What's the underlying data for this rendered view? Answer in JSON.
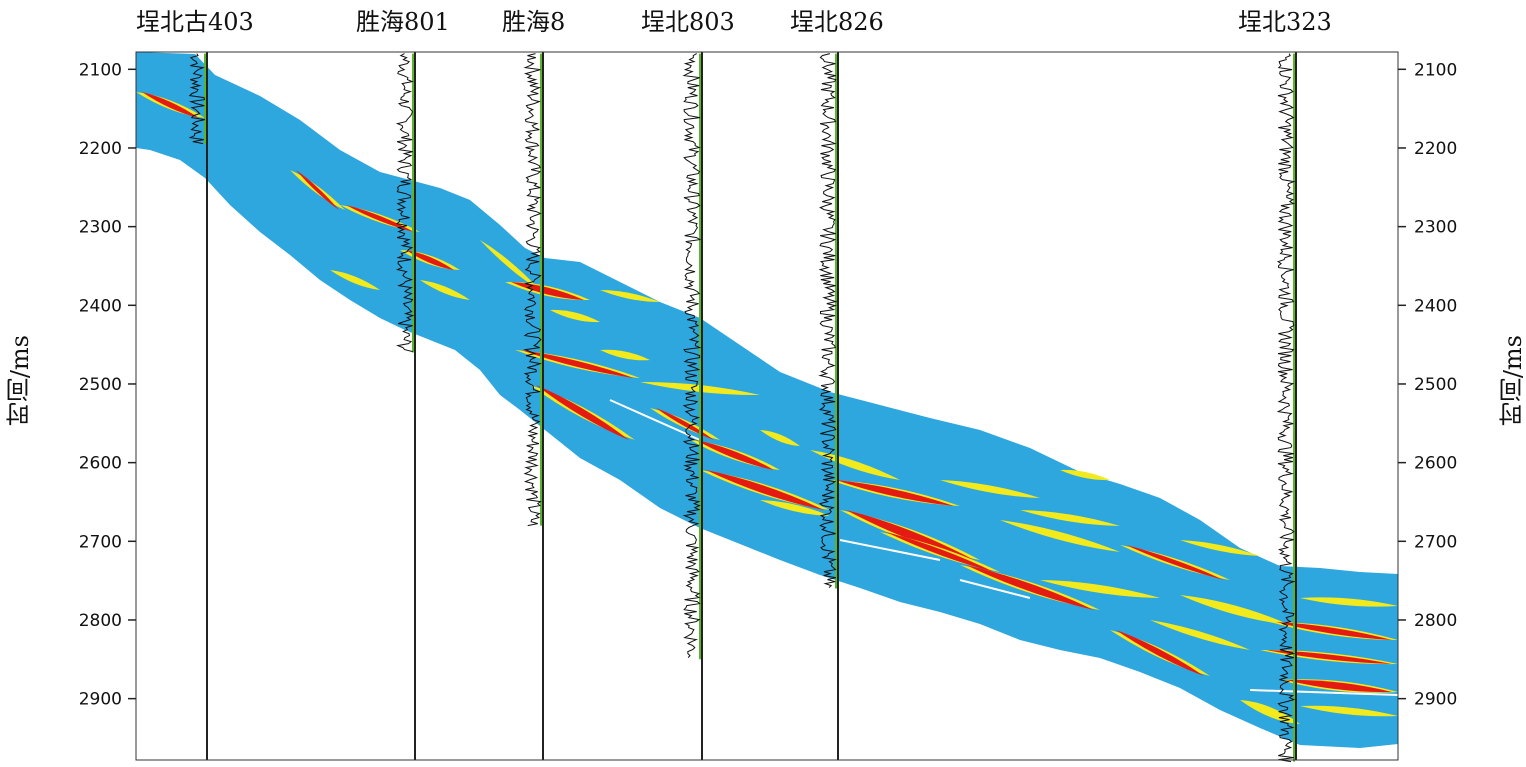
{
  "wells": [
    {
      "name": "埕北古403",
      "time_start": 2080,
      "time_end": 2195
    },
    {
      "name": "胜海801",
      "time_start": 2080,
      "time_end": 2460
    },
    {
      "name": "胜海8",
      "time_start": 2080,
      "time_end": 2680
    },
    {
      "name": "埕北803",
      "time_start": 2080,
      "time_end": 2850
    },
    {
      "name": "埕北826",
      "time_start": 2080,
      "time_end": 2760
    },
    {
      "name": "埕北323",
      "time_start": 2080,
      "time_end": 2980
    }
  ],
  "axis": {
    "left_title": "时间/ms",
    "right_title": "时间/ms",
    "ticks": [
      "2100",
      "2200",
      "2300",
      "2400",
      "2500",
      "2600",
      "2700",
      "2800",
      "2900"
    ],
    "ylim": [
      2078,
      2978
    ]
  },
  "colors": {
    "band": "#2ea6de",
    "high_amp": "#e31b12",
    "mid_amp": "#f2ea1c",
    "peak": "#ffffff",
    "log_curve": "#111111",
    "well_marker": "#59b52b"
  }
}
